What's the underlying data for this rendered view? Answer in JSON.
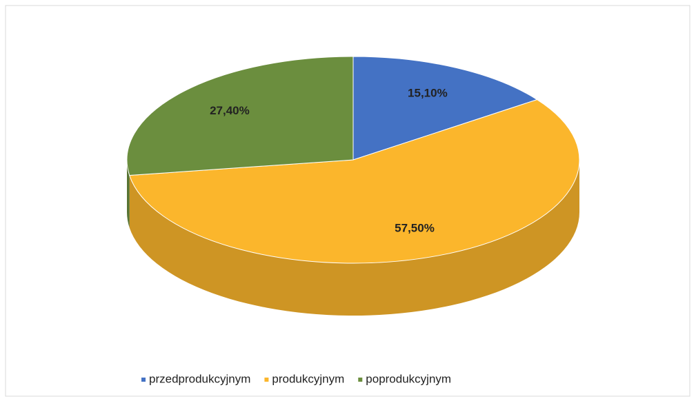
{
  "chart_data": {
    "type": "pie",
    "categories": [
      "przedprodukcyjnym",
      "produkcyjnym",
      "poprodukcyjnym"
    ],
    "values": [
      15.1,
      57.5,
      27.4
    ],
    "value_labels": [
      "15,10%",
      "57,50%",
      "27,40%"
    ],
    "colors": [
      "#4472c4",
      "#fbb62c",
      "#6b8e3e"
    ],
    "legend": "bottom"
  }
}
